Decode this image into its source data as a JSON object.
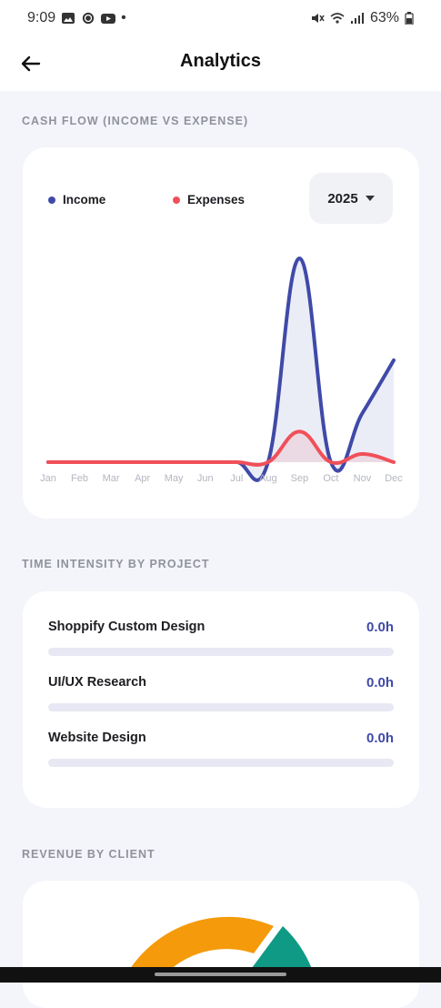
{
  "status_bar": {
    "time": "9:09",
    "dot": "•",
    "battery": "63%"
  },
  "header": {
    "title": "Analytics"
  },
  "cash_flow": {
    "section_title": "CASH FLOW (INCOME VS EXPENSE)",
    "legend": {
      "income": "Income",
      "expenses": "Expenses"
    },
    "year": "2025",
    "colors": {
      "income": "#3f4aa8",
      "expenses": "#f0505a"
    }
  },
  "chart_data": {
    "type": "area",
    "categories": [
      "Jan",
      "Feb",
      "Mar",
      "Apr",
      "May",
      "Jun",
      "Jul",
      "Aug",
      "Sep",
      "Oct",
      "Nov",
      "Dec"
    ],
    "series": [
      {
        "name": "Income",
        "values": [
          0,
          0,
          0,
          0,
          0,
          0,
          0,
          0,
          100,
          0,
          24,
          50
        ]
      },
      {
        "name": "Expenses",
        "values": [
          0,
          0,
          0,
          0,
          0,
          0,
          0,
          0,
          15,
          0,
          4,
          0
        ]
      }
    ],
    "legend_position": "top-left",
    "grid": false
  },
  "time_intensity": {
    "section_title": "TIME INTENSITY BY PROJECT",
    "projects": [
      {
        "name": "Shoppify Custom Design",
        "value": "0.0h",
        "progress": 0
      },
      {
        "name": "UI/UX Research",
        "value": "0.0h",
        "progress": 0
      },
      {
        "name": "Website Design",
        "value": "0.0h",
        "progress": 0
      }
    ]
  },
  "revenue": {
    "section_title": "REVENUE BY CLIENT",
    "colors": [
      "#f59a0a",
      "#0f9a85"
    ]
  }
}
